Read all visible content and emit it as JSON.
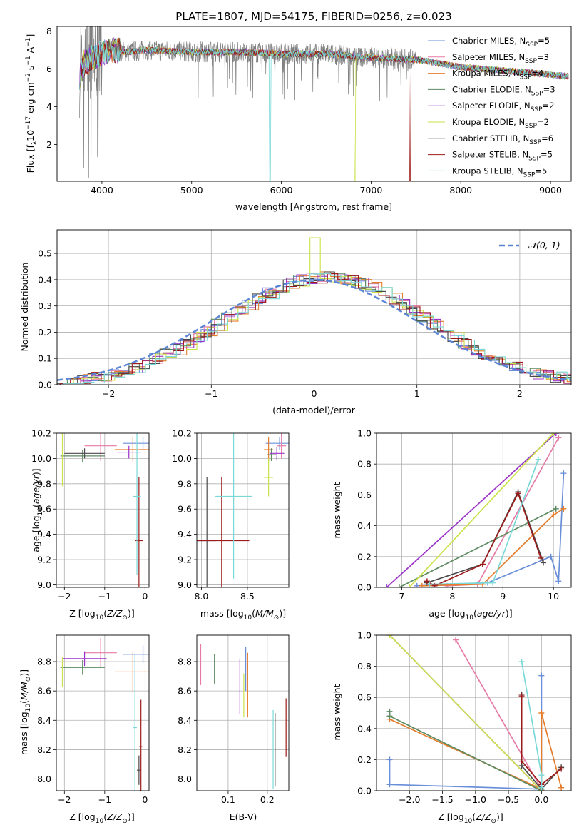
{
  "figure_title": "PLATE=1807, MJD=54175, FIBERID=0256, z=0.023",
  "colors": {
    "Chabrier MILES": "#6a8fd9",
    "Salpeter MILES": "#e67aa6",
    "Kroupa MILES": "#e57d2d",
    "Chabrier ELODIE": "#5d8a60",
    "Salpeter ELODIE": "#9b35c8",
    "Kroupa ELODIE": "#cbe24a",
    "Chabrier STELIB": "#4a4a4a",
    "Salpeter STELIB": "#9c1a1a",
    "Kroupa STELIB": "#7ad8d8",
    "data": "#7f7f7f",
    "normal": "#5b84d4"
  },
  "chart_data": [
    {
      "type": "line",
      "title": "PLATE=1807, MJD=54175, FIBERID=0256, z=0.023",
      "xlabel": "wavelength [Angstrom, rest frame]",
      "ylabel": "Flux [fλ10⁻¹⁷ erg cm⁻² s⁻¹ A⁻¹]",
      "xlim": [
        3500,
        9230
      ],
      "ylim": [
        0.05,
        8.25
      ],
      "xticks": [
        4000,
        5000,
        6000,
        7000,
        8000,
        9000
      ],
      "yticks": [
        2,
        4,
        6,
        8
      ],
      "legend": [
        "Chabrier MILES, N_SSP=5",
        "Salpeter MILES, N_SSP=3",
        "Kroupa MILES, N_SSP=4",
        "Chabrier ELODIE, N_SSP=3",
        "Salpeter ELODIE, N_SSP=2",
        "Kroupa ELODIE, N_SSP=2",
        "Chabrier STELIB, N_SSP=6",
        "Salpeter STELIB, N_SSP=5",
        "Kroupa STELIB, N_SSP=5"
      ],
      "legend_placement": "top-right",
      "continuum": [
        [
          3750,
          5.6
        ],
        [
          3800,
          6.3
        ],
        [
          3900,
          6.6
        ],
        [
          4000,
          6.8
        ],
        [
          4100,
          7.0
        ],
        [
          4300,
          6.9
        ],
        [
          4500,
          7.0
        ],
        [
          5000,
          6.9
        ],
        [
          5500,
          6.9
        ],
        [
          6000,
          6.8
        ],
        [
          6500,
          6.8
        ],
        [
          7000,
          6.6
        ],
        [
          7500,
          6.5
        ],
        [
          8000,
          6.1
        ],
        [
          8500,
          5.9
        ],
        [
          9000,
          5.7
        ],
        [
          9200,
          5.6
        ]
      ],
      "model_cutoffs": [
        {
          "model": "Kroupa STELIB",
          "wavelength": 5870
        },
        {
          "model": "Kroupa ELODIE",
          "wavelength": 6810
        },
        {
          "model": "Salpeter STELIB",
          "wavelength": 7430
        }
      ]
    },
    {
      "type": "bar",
      "xlabel": "(data-model)/error",
      "ylabel": "Normed distribution",
      "xlim": [
        -2.5,
        2.5
      ],
      "ylim": [
        0,
        0.59
      ],
      "xticks": [
        -2,
        -1,
        0,
        1,
        2
      ],
      "yticks": [
        0.0,
        0.1,
        0.2,
        0.3,
        0.4,
        0.5
      ],
      "grid": true,
      "bin_width": 0.1,
      "curve": {
        "name": "𝒩(0, 1)",
        "mean": 0,
        "sigma": 1
      },
      "legend_placement": "top-right",
      "approx_peak": 0.41,
      "approx_sigma": 0.97,
      "max_bin": {
        "x": -0.05,
        "value": 0.56
      }
    },
    {
      "type": "scatter",
      "xlabel": "Z [log10(Z/Z⊙)]",
      "ylabel": "age  [log10(age/yr)]",
      "xlim": [
        -2.2,
        0.1
      ],
      "ylim": [
        8.98,
        10.2
      ],
      "xticks": [
        -2,
        -1,
        0
      ],
      "yticks": [
        9.0,
        9.2,
        9.4,
        9.6,
        9.8,
        10.0,
        10.2
      ],
      "grid": true,
      "points": [
        {
          "model": "Chabrier MILES",
          "x": -0.05,
          "y": 10.12,
          "xerr": 0.5,
          "yerr": 0.05
        },
        {
          "model": "Salpeter MILES",
          "x": -1.1,
          "y": 10.1,
          "xerr": 0.4,
          "yerr": 0.12
        },
        {
          "model": "Kroupa MILES",
          "x": -0.3,
          "y": 10.07,
          "xerr": 0.45,
          "yerr": 0.1
        },
        {
          "model": "Chabrier ELODIE",
          "x": -1.55,
          "y": 10.02,
          "xerr": 0.55,
          "yerr": 0.05
        },
        {
          "model": "Salpeter ELODIE",
          "x": -0.4,
          "y": 10.05,
          "xerr": 0.3,
          "yerr": 0.05
        },
        {
          "model": "Kroupa ELODIE",
          "x": -2.05,
          "y": 10.03,
          "xerr": 0.0,
          "yerr": 0.25
        },
        {
          "model": "Chabrier STELIB",
          "x": -1.5,
          "y": 10.04,
          "xerr": 0.5,
          "yerr": 0.04
        },
        {
          "model": "Salpeter STELIB",
          "x": -0.15,
          "y": 9.35,
          "xerr": 0.1,
          "yerr": 0.5
        },
        {
          "model": "Kroupa STELIB",
          "x": -0.2,
          "y": 9.7,
          "xerr": 0.1,
          "yerr": 0.62
        }
      ]
    },
    {
      "type": "scatter",
      "xlabel": "mass [log10(M/M⊙)]",
      "xlim": [
        7.95,
        8.95
      ],
      "ylim": [
        8.98,
        10.2
      ],
      "xticks": [
        8.0,
        8.5
      ],
      "yticks": [
        9.0,
        9.2,
        9.4,
        9.6,
        9.8,
        10.0,
        10.2
      ],
      "grid": true,
      "points": [
        {
          "model": "Chabrier MILES",
          "x": 8.85,
          "y": 10.12,
          "xerr": 0.15,
          "yerr": 0.05
        },
        {
          "model": "Salpeter MILES",
          "x": 8.87,
          "y": 10.1,
          "xerr": 0.05,
          "yerr": 0.1
        },
        {
          "model": "Kroupa MILES",
          "x": 8.73,
          "y": 10.07,
          "xerr": 0.05,
          "yerr": 0.1
        },
        {
          "model": "Chabrier ELODIE",
          "x": 8.76,
          "y": 10.03,
          "xerr": 0.05,
          "yerr": 0.05
        },
        {
          "model": "Salpeter ELODIE",
          "x": 8.82,
          "y": 10.04,
          "xerr": 0.08,
          "yerr": 0.05
        },
        {
          "model": "Kroupa ELODIE",
          "x": 8.73,
          "y": 9.85,
          "xerr": 0.05,
          "yerr": 0.15
        },
        {
          "model": "Chabrier STELIB",
          "x": 8.06,
          "y": 9.35,
          "xerr": 0.1,
          "yerr": 0.5
        },
        {
          "model": "Salpeter STELIB",
          "x": 8.22,
          "y": 9.35,
          "xerr": 0.3,
          "yerr": 0.5
        },
        {
          "model": "Kroupa STELIB",
          "x": 8.35,
          "y": 9.7,
          "xerr": 0.2,
          "yerr": 0.65
        }
      ]
    },
    {
      "type": "line",
      "xlabel": "age  [log10(age/yr)]",
      "ylabel": "mass weight",
      "xlim": [
        6.5,
        10.35
      ],
      "ylim": [
        0,
        1
      ],
      "xticks": [
        7,
        8,
        9,
        10
      ],
      "yticks": [
        0.0,
        0.2,
        0.4,
        0.6,
        0.8,
        1.0
      ],
      "grid": true,
      "series": [
        {
          "model": "Chabrier MILES",
          "x": [
            7.3,
            8.7,
            9.95,
            10.1,
            10.2
          ],
          "y": [
            0.01,
            0.03,
            0.2,
            0.04,
            0.74
          ]
        },
        {
          "model": "Salpeter MILES",
          "x": [
            7.9,
            8.5,
            10.1
          ],
          "y": [
            0.01,
            0.02,
            0.97
          ]
        },
        {
          "model": "Kroupa MILES",
          "x": [
            7.4,
            8.6,
            10.0,
            10.2
          ],
          "y": [
            0.01,
            0.02,
            0.47,
            0.51
          ]
        },
        {
          "model": "Chabrier ELODIE",
          "x": [
            6.95,
            10.05
          ],
          "y": [
            0.0,
            0.51
          ]
        },
        {
          "model": "Salpeter ELODIE",
          "x": [
            6.7,
            10.05
          ],
          "y": [
            0.0,
            1.0
          ]
        },
        {
          "model": "Kroupa ELODIE",
          "x": [
            7.15,
            10.0
          ],
          "y": [
            0.0,
            1.0
          ]
        },
        {
          "model": "Chabrier STELIB",
          "x": [
            7.5,
            8.6,
            9.3,
            9.8
          ],
          "y": [
            0.03,
            0.15,
            0.62,
            0.16
          ]
        },
        {
          "model": "Salpeter STELIB",
          "x": [
            7.5,
            7.65,
            8.6,
            9.3,
            9.75
          ],
          "y": [
            0.04,
            0.01,
            0.15,
            0.61,
            0.19
          ]
        },
        {
          "model": "Kroupa STELIB",
          "x": [
            7.55,
            8.8,
            9.7
          ],
          "y": [
            0.02,
            0.03,
            0.83
          ]
        }
      ]
    },
    {
      "type": "scatter",
      "xlabel": "Z [log10(Z/Z⊙)]",
      "ylabel": "mass [log10(M/M⊙)]",
      "xlim": [
        -2.2,
        0.1
      ],
      "ylim": [
        7.92,
        8.98
      ],
      "xticks": [
        -2,
        -1,
        0
      ],
      "yticks": [
        8.0,
        8.2,
        8.4,
        8.6,
        8.8
      ],
      "grid": true,
      "points": [
        {
          "model": "Chabrier MILES",
          "x": -0.05,
          "y": 8.85,
          "xerr": 0.5,
          "yerr": 0.06
        },
        {
          "model": "Salpeter MILES",
          "x": -1.1,
          "y": 8.86,
          "xerr": 0.4,
          "yerr": 0.1
        },
        {
          "model": "Kroupa MILES",
          "x": -0.3,
          "y": 8.73,
          "xerr": 0.45,
          "yerr": 0.14
        },
        {
          "model": "Chabrier ELODIE",
          "x": -1.55,
          "y": 8.76,
          "xerr": 0.55,
          "yerr": 0.05
        },
        {
          "model": "Salpeter ELODIE",
          "x": -1.5,
          "y": 8.82,
          "xerr": 0.55,
          "yerr": 0.05
        },
        {
          "model": "Kroupa ELODIE",
          "x": -2.05,
          "y": 8.73,
          "xerr": 0.0,
          "yerr": 0.1
        },
        {
          "model": "Chabrier STELIB",
          "x": -0.15,
          "y": 8.06,
          "xerr": 0.05,
          "yerr": 0.1
        },
        {
          "model": "Salpeter STELIB",
          "x": -0.1,
          "y": 8.22,
          "xerr": 0.05,
          "yerr": 0.32
        },
        {
          "model": "Kroupa STELIB",
          "x": -0.25,
          "y": 8.35,
          "xerr": 0.05,
          "yerr": 0.5
        }
      ]
    },
    {
      "type": "scatter",
      "xlabel": "E(B-V)",
      "xlim": [
        0.02,
        0.255
      ],
      "ylim": [
        7.92,
        8.98
      ],
      "xticks": [
        0.1,
        0.2
      ],
      "yticks": [
        8.0,
        8.2,
        8.4,
        8.6,
        8.8
      ],
      "grid": true,
      "points": [
        {
          "model": "Chabrier MILES",
          "x": 0.145,
          "y": 8.75,
          "xerr": 0.0,
          "yerr": 0.15
        },
        {
          "model": "Salpeter MILES",
          "x": 0.03,
          "y": 8.78,
          "xerr": 0.0,
          "yerr": 0.14
        },
        {
          "model": "Kroupa MILES",
          "x": 0.15,
          "y": 8.64,
          "xerr": 0.0,
          "yerr": 0.22
        },
        {
          "model": "Chabrier ELODIE",
          "x": 0.065,
          "y": 8.75,
          "xerr": 0.0,
          "yerr": 0.1
        },
        {
          "model": "Salpeter ELODIE",
          "x": 0.13,
          "y": 8.63,
          "xerr": 0.0,
          "yerr": 0.19
        },
        {
          "model": "Kroupa ELODIE",
          "x": 0.14,
          "y": 8.57,
          "xerr": 0.0,
          "yerr": 0.15
        },
        {
          "model": "Chabrier STELIB",
          "x": 0.22,
          "y": 8.2,
          "xerr": 0.0,
          "yerr": 0.25
        },
        {
          "model": "Salpeter STELIB",
          "x": 0.248,
          "y": 8.35,
          "xerr": 0.0,
          "yerr": 0.2
        },
        {
          "model": "Kroupa STELIB",
          "x": 0.215,
          "y": 8.2,
          "xerr": 0.0,
          "yerr": 0.27
        }
      ]
    },
    {
      "type": "line",
      "xlabel": "Z [log10(Z/Z⊙)]",
      "ylabel": "mass weight",
      "xlim": [
        -2.5,
        0.45
      ],
      "ylim": [
        0,
        1
      ],
      "xticks": [
        -2.0,
        -1.5,
        -1.0,
        -0.5,
        0.0
      ],
      "yticks": [
        0.0,
        0.2,
        0.4,
        0.6,
        0.8,
        1.0
      ],
      "grid": true,
      "series": [
        {
          "model": "Chabrier MILES",
          "x": [
            -2.3,
            -2.3,
            0.0,
            0.0
          ],
          "y": [
            0.2,
            0.04,
            0.01,
            0.74
          ]
        },
        {
          "model": "Salpeter MILES",
          "x": [
            -1.3,
            0.0
          ],
          "y": [
            0.97,
            0.01
          ]
        },
        {
          "model": "Kroupa MILES",
          "x": [
            -2.3,
            0.0,
            0.0,
            0.3
          ],
          "y": [
            0.46,
            0.01,
            0.5,
            0.02
          ]
        },
        {
          "model": "Chabrier ELODIE",
          "x": [
            -2.3,
            -2.3,
            0.0
          ],
          "y": [
            0.51,
            0.48,
            0.0
          ]
        },
        {
          "model": "Salpeter ELODIE",
          "x": [
            -2.3,
            0.0
          ],
          "y": [
            1.0,
            0.0
          ]
        },
        {
          "model": "Kroupa ELODIE",
          "x": [
            -2.3,
            0.0
          ],
          "y": [
            1.0,
            0.0
          ]
        },
        {
          "model": "Chabrier STELIB",
          "x": [
            -0.3,
            -0.3,
            0.0,
            0.3
          ],
          "y": [
            0.62,
            0.16,
            0.01,
            0.15
          ]
        },
        {
          "model": "Salpeter STELIB",
          "x": [
            -0.3,
            -0.3,
            0.0,
            0.3
          ],
          "y": [
            0.61,
            0.19,
            0.04,
            0.14
          ]
        },
        {
          "model": "Kroupa STELIB",
          "x": [
            -0.3,
            0.0,
            0.0
          ],
          "y": [
            0.83,
            0.1,
            0.02
          ]
        }
      ]
    }
  ]
}
